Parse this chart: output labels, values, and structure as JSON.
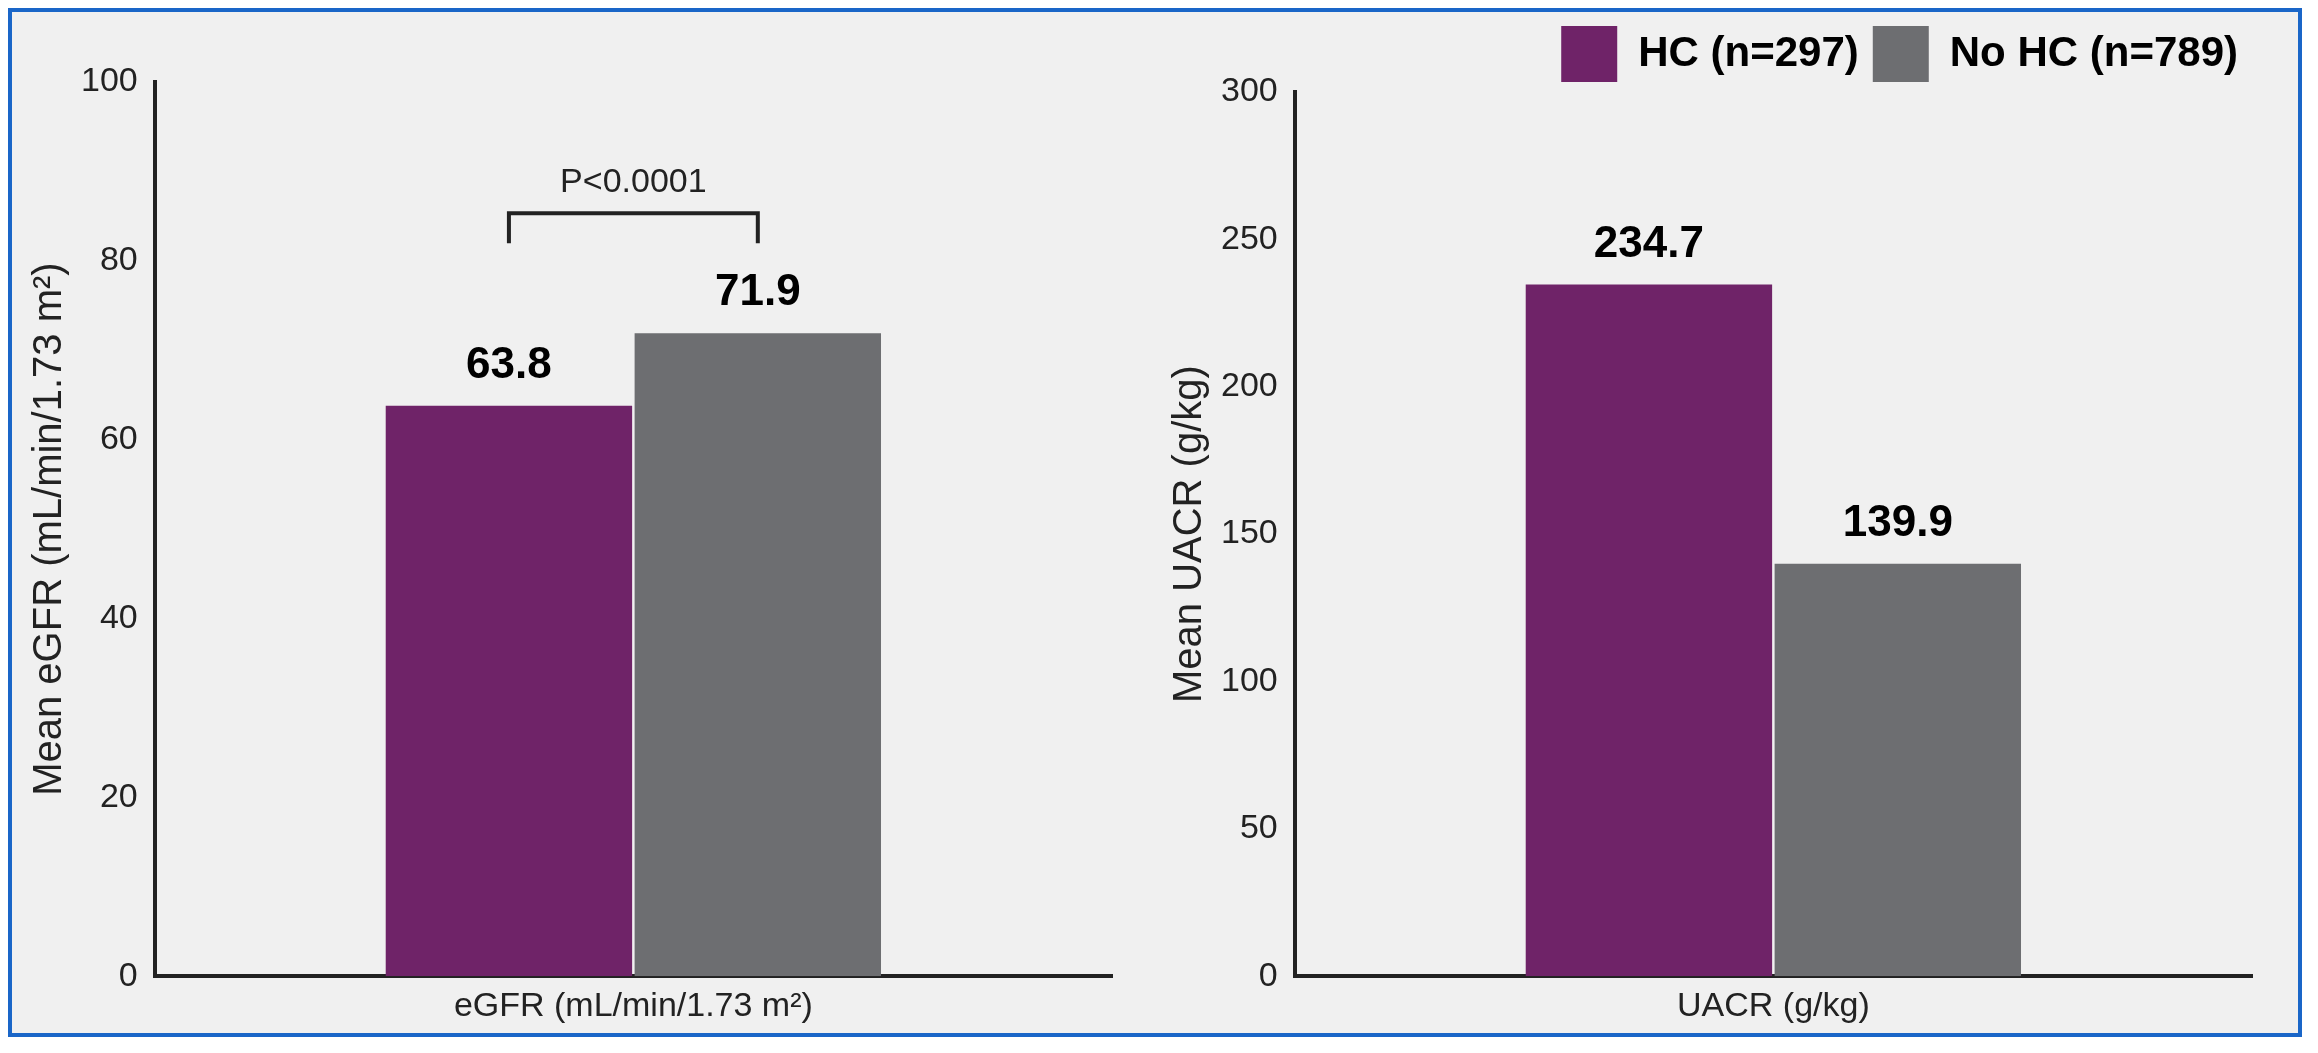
{
  "chart_data": [
    {
      "type": "bar",
      "categories": [
        "eGFR (mL/min/1.73 m²)"
      ],
      "ylabel": "Mean eGFR (mL/min/1.73 m²)",
      "ylim": [
        0,
        100
      ],
      "yticks": [
        0,
        20,
        40,
        60,
        80,
        100
      ],
      "grid": false,
      "legend": false,
      "data_labels": true,
      "annotations": [
        "P<0.0001"
      ],
      "series": [
        {
          "color": "#6f2368",
          "values": [
            63.8
          ]
        },
        {
          "color": "#6d6e71",
          "values": [
            71.9
          ]
        }
      ]
    },
    {
      "type": "bar",
      "categories": [
        "UACR (g/kg)"
      ],
      "ylabel": "Mean UACR (g/kg)",
      "ylim": [
        0,
        300
      ],
      "yticks": [
        0,
        50,
        100,
        150,
        200,
        250,
        300
      ],
      "grid": false,
      "legend": "top right",
      "data_labels": true,
      "series": [
        {
          "name": "HC (n=297)",
          "color": "#6f2368",
          "values": [
            234.7
          ]
        },
        {
          "name": "No HC (n=789)",
          "color": "#6d6e71",
          "values": [
            139.9
          ]
        }
      ]
    }
  ]
}
